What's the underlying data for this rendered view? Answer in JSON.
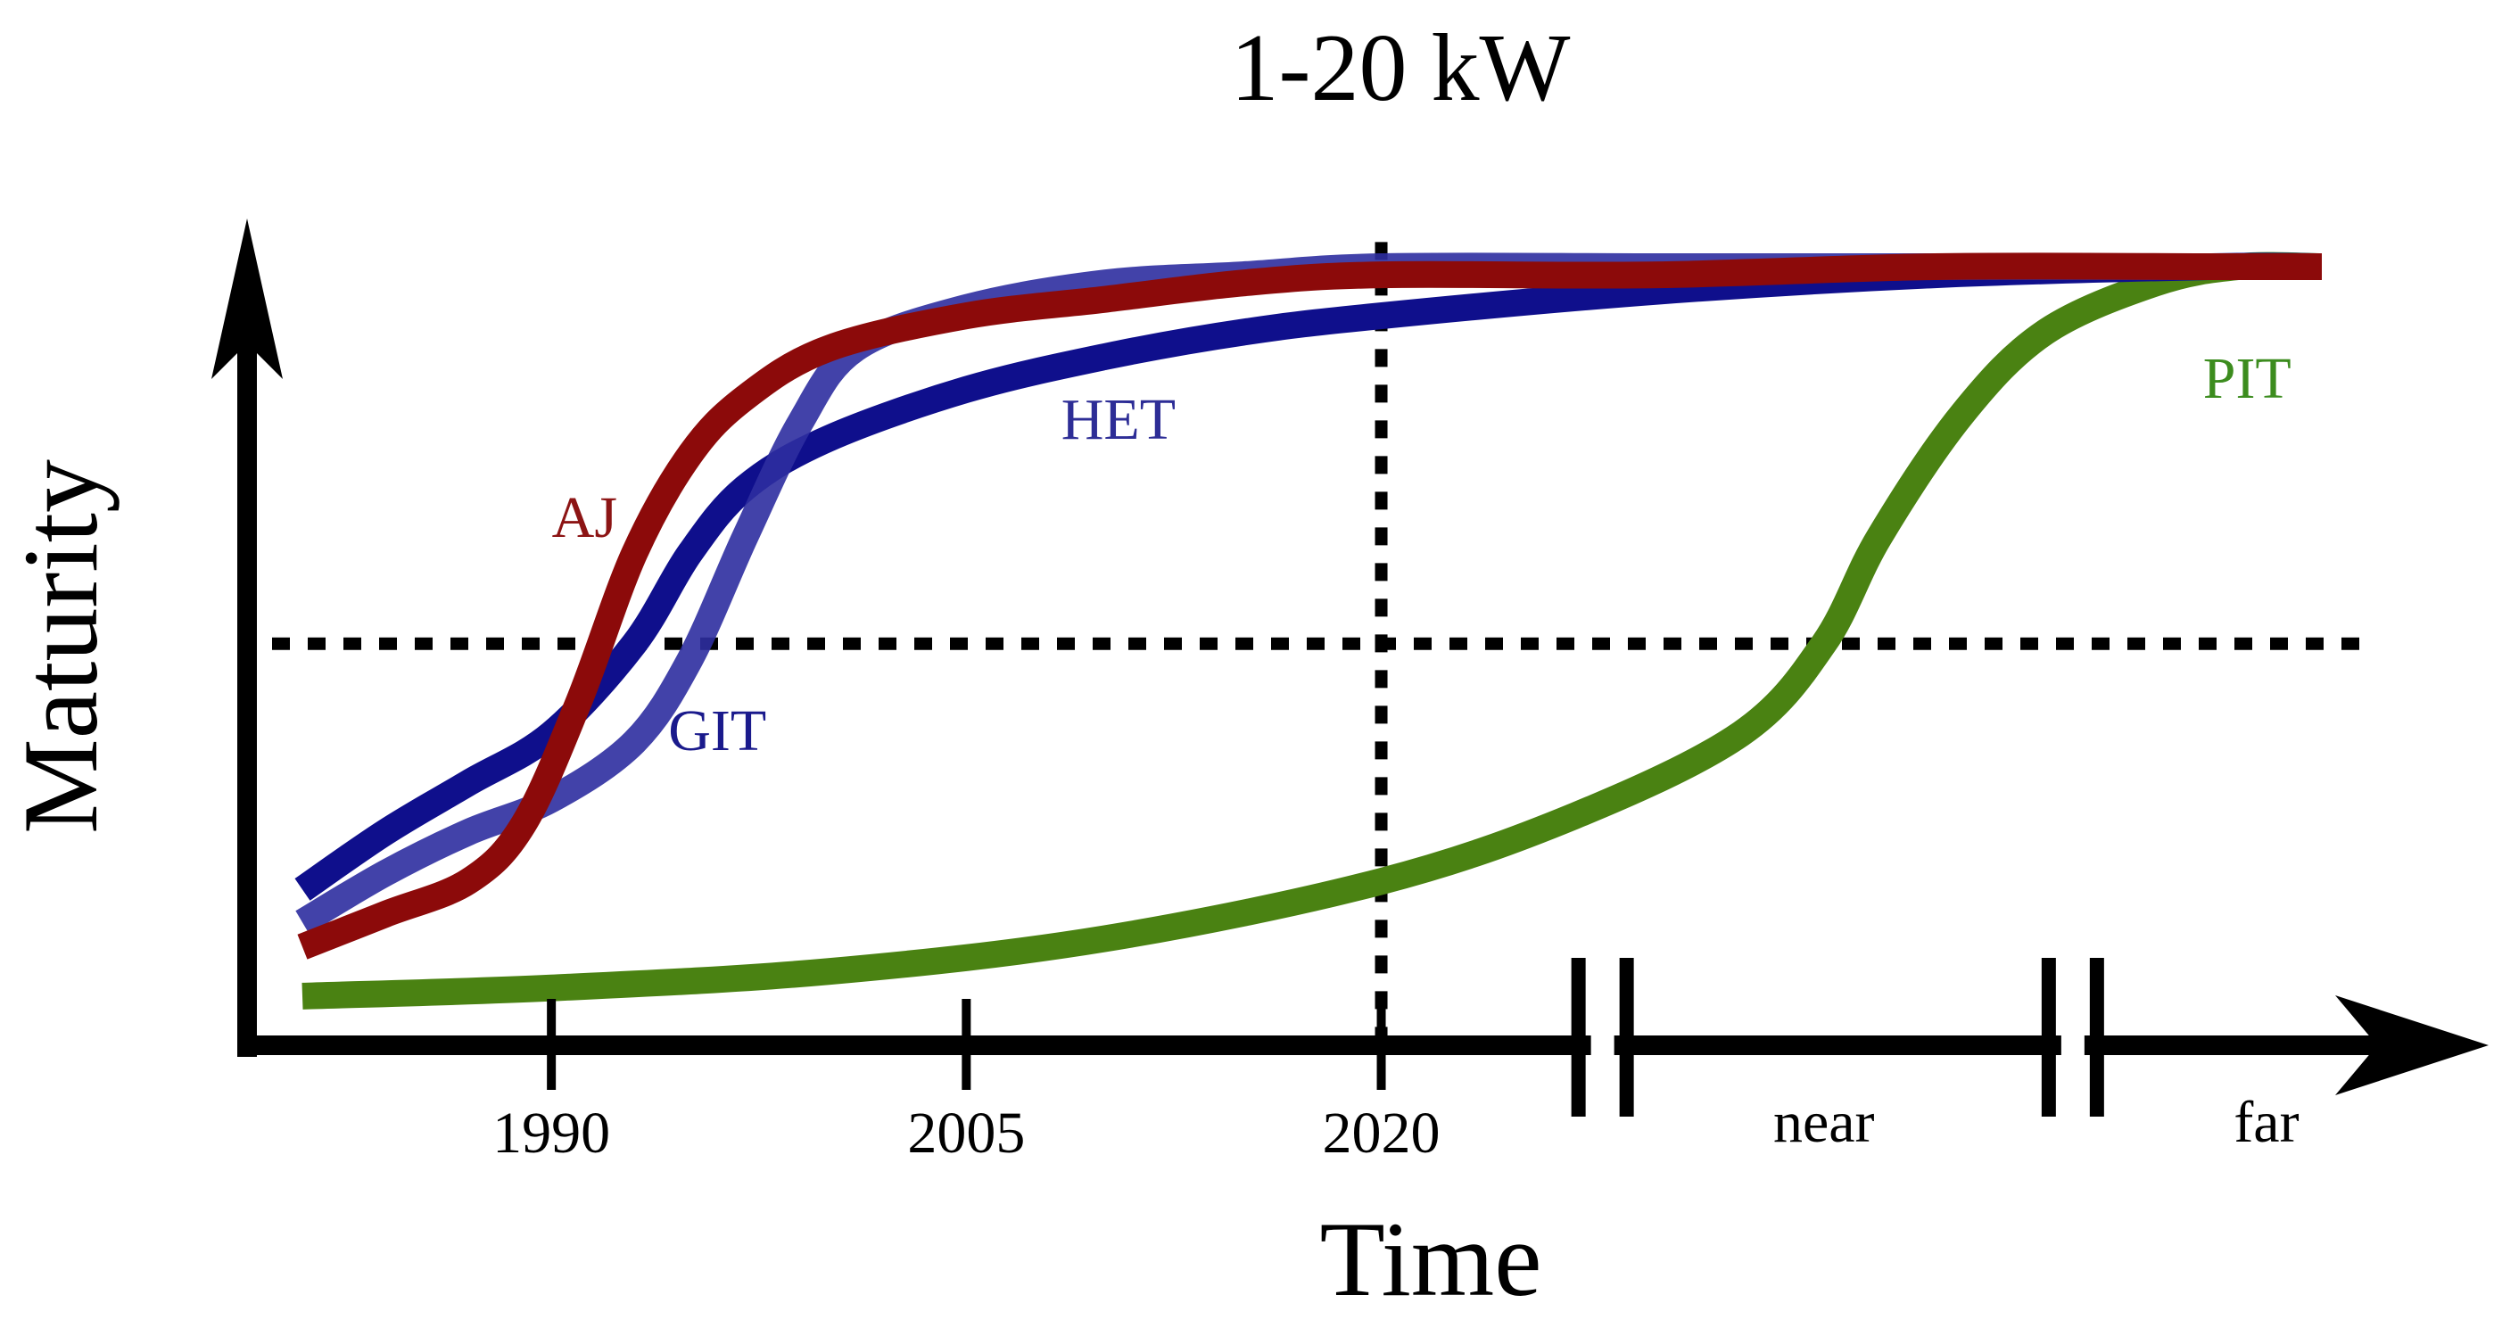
{
  "chart_data": {
    "type": "line",
    "title": "1-20 kW",
    "xlabel": "Time",
    "ylabel": "Maturity",
    "grid": false,
    "legend": "none",
    "xlim": [
      1979,
      2056
    ],
    "ylim": [
      0,
      1
    ],
    "x_ticks": [
      {
        "value": 1990,
        "label": "1990"
      },
      {
        "value": 2005,
        "label": "2005"
      },
      {
        "value": 2020,
        "label": "2020"
      }
    ],
    "x_region_labels": [
      {
        "value": 2036,
        "label": "near"
      },
      {
        "value": 2052,
        "label": "far"
      }
    ],
    "x_axis_breaks": [
      2028,
      2045
    ],
    "reference_lines": [
      {
        "orientation": "vertical",
        "value": 2020,
        "style": "dotted"
      },
      {
        "orientation": "horizontal",
        "value": 0.49,
        "style": "dotted"
      }
    ],
    "series": [
      {
        "name": "HET",
        "label": "HET",
        "color": "#0F0F8C",
        "label_color": "#2D2D96",
        "opacity": 1,
        "label_at": [
          2010.5,
          0.74
        ],
        "points": [
          [
            1981,
            0.19
          ],
          [
            1984,
            0.26
          ],
          [
            1987,
            0.32
          ],
          [
            1990,
            0.38
          ],
          [
            1993,
            0.49
          ],
          [
            1995,
            0.6
          ],
          [
            1997,
            0.68
          ],
          [
            2000,
            0.74
          ],
          [
            2005,
            0.8
          ],
          [
            2010,
            0.84
          ],
          [
            2015,
            0.87
          ],
          [
            2020,
            0.89
          ],
          [
            2030,
            0.92
          ],
          [
            2040,
            0.94
          ],
          [
            2050,
            0.95
          ],
          [
            2054,
            0.95
          ]
        ]
      },
      {
        "name": "GIT",
        "label": "GIT",
        "color": "#2D2DA0",
        "label_color": "#1A1A8C",
        "opacity": 0.9,
        "label_at": [
          1996,
          0.36
        ],
        "points": [
          [
            1981,
            0.15
          ],
          [
            1984,
            0.21
          ],
          [
            1987,
            0.26
          ],
          [
            1990,
            0.3
          ],
          [
            1993,
            0.37
          ],
          [
            1995,
            0.47
          ],
          [
            1997,
            0.62
          ],
          [
            1999,
            0.76
          ],
          [
            2001,
            0.85
          ],
          [
            2005,
            0.9
          ],
          [
            2010,
            0.93
          ],
          [
            2015,
            0.94
          ],
          [
            2020,
            0.95
          ],
          [
            2030,
            0.95
          ],
          [
            2040,
            0.95
          ],
          [
            2050,
            0.95
          ],
          [
            2054,
            0.95
          ]
        ]
      },
      {
        "name": "AJ",
        "label": "AJ",
        "color": "#8C0A0A",
        "label_color": "#8C1414",
        "opacity": 1,
        "label_at": [
          1991.2,
          0.62
        ],
        "points": [
          [
            1981,
            0.12
          ],
          [
            1984,
            0.16
          ],
          [
            1987,
            0.2
          ],
          [
            1989,
            0.27
          ],
          [
            1991,
            0.42
          ],
          [
            1993,
            0.6
          ],
          [
            1995,
            0.72
          ],
          [
            1997,
            0.79
          ],
          [
            2000,
            0.85
          ],
          [
            2005,
            0.89
          ],
          [
            2010,
            0.91
          ],
          [
            2015,
            0.93
          ],
          [
            2020,
            0.94
          ],
          [
            2030,
            0.94
          ],
          [
            2040,
            0.95
          ],
          [
            2050,
            0.95
          ],
          [
            2054,
            0.95
          ]
        ]
      },
      {
        "name": "PIT",
        "label": "PIT",
        "color": "#4A8212",
        "label_color": "#3C8C1E",
        "opacity": 1,
        "label_at": [
          2051.3,
          0.79
        ],
        "points": [
          [
            1981,
            0.06
          ],
          [
            1990,
            0.07
          ],
          [
            2000,
            0.09
          ],
          [
            2010,
            0.13
          ],
          [
            2020,
            0.2
          ],
          [
            2027,
            0.28
          ],
          [
            2033,
            0.38
          ],
          [
            2036,
            0.49
          ],
          [
            2038,
            0.62
          ],
          [
            2041,
            0.77
          ],
          [
            2044,
            0.87
          ],
          [
            2048,
            0.93
          ],
          [
            2051,
            0.95
          ],
          [
            2054,
            0.95
          ]
        ]
      }
    ]
  }
}
